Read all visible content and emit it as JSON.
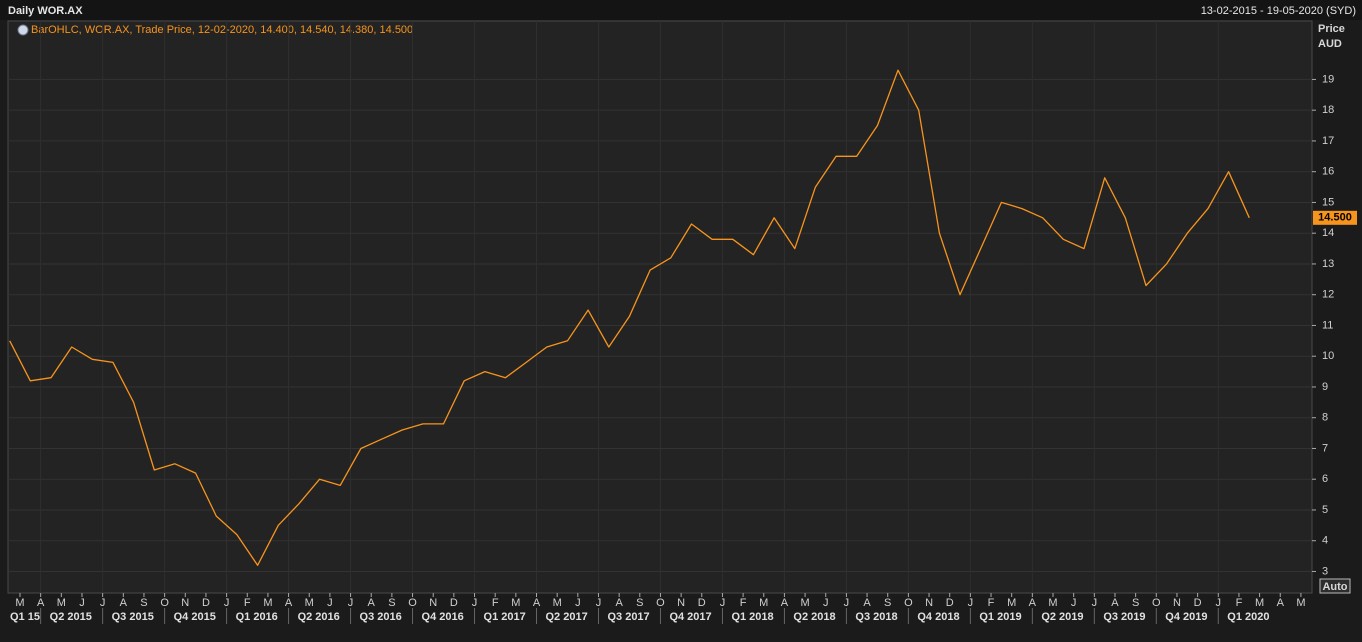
{
  "chart_data": {
    "type": "line",
    "title": "Daily WOR.AX",
    "date_range": "13-02-2015 - 19-05-2020 (SYD)",
    "legend_text": "BarOHLC, WOR.AX, Trade Price, 12-02-2020, 14.400, 14.540, 14.380, 14.500",
    "y_axis_label": "Price",
    "y_axis_unit": "AUD",
    "scale_mode": "Auto",
    "last_price": {
      "value": 14.5,
      "label": "14.500"
    },
    "grid": true,
    "x": [
      "2015-02",
      "2015-03",
      "2015-04",
      "2015-05",
      "2015-06",
      "2015-07",
      "2015-08",
      "2015-09",
      "2015-10",
      "2015-11",
      "2015-12",
      "2016-01",
      "2016-02",
      "2016-03",
      "2016-04",
      "2016-05",
      "2016-06",
      "2016-07",
      "2016-08",
      "2016-09",
      "2016-10",
      "2016-11",
      "2016-12",
      "2017-01",
      "2017-02",
      "2017-03",
      "2017-04",
      "2017-05",
      "2017-06",
      "2017-07",
      "2017-08",
      "2017-09",
      "2017-10",
      "2017-11",
      "2017-12",
      "2018-01",
      "2018-02",
      "2018-03",
      "2018-04",
      "2018-05",
      "2018-06",
      "2018-07",
      "2018-08",
      "2018-09",
      "2018-10",
      "2018-11",
      "2018-12",
      "2019-01",
      "2019-02",
      "2019-03",
      "2019-04",
      "2019-05",
      "2019-06",
      "2019-07",
      "2019-08",
      "2019-09",
      "2019-10",
      "2019-11",
      "2019-12",
      "2020-01",
      "2020-02"
    ],
    "series": [
      {
        "name": "WOR.AX",
        "color": "#f7941d",
        "values": [
          10.5,
          9.2,
          9.3,
          10.3,
          9.9,
          9.8,
          8.5,
          6.3,
          6.5,
          6.2,
          4.8,
          4.2,
          3.2,
          4.5,
          5.2,
          6.0,
          5.8,
          7.0,
          7.3,
          7.6,
          7.8,
          7.8,
          9.2,
          9.5,
          9.3,
          9.8,
          10.3,
          10.5,
          11.5,
          10.3,
          11.3,
          12.8,
          13.2,
          14.3,
          13.8,
          13.8,
          13.3,
          14.5,
          13.5,
          15.5,
          16.5,
          16.5,
          17.5,
          19.3,
          18.0,
          14.0,
          12.0,
          13.5,
          15.0,
          14.8,
          14.5,
          13.8,
          13.5,
          15.8,
          14.5,
          12.3,
          13.0,
          14.0,
          14.8,
          16.0,
          14.5
        ]
      }
    ],
    "ylim": [
      2.3,
      20.9
    ],
    "yticks": [
      3,
      4,
      5,
      6,
      7,
      8,
      9,
      10,
      11,
      12,
      13,
      14,
      15,
      16,
      17,
      18,
      19
    ],
    "xticks": [
      {
        "value": "2015-03",
        "label": "M"
      },
      {
        "value": "2015-04",
        "label": "A"
      },
      {
        "value": "2015-05",
        "label": "M"
      },
      {
        "value": "2015-06",
        "label": "J"
      },
      {
        "value": "2015-07",
        "label": "J"
      },
      {
        "value": "2015-08",
        "label": "A"
      },
      {
        "value": "2015-09",
        "label": "S"
      },
      {
        "value": "2015-10",
        "label": "O"
      },
      {
        "value": "2015-11",
        "label": "N"
      },
      {
        "value": "2015-12",
        "label": "D"
      },
      {
        "value": "2016-01",
        "label": "J"
      },
      {
        "value": "2016-02",
        "label": "F"
      },
      {
        "value": "2016-03",
        "label": "M"
      },
      {
        "value": "2016-04",
        "label": "A"
      },
      {
        "value": "2016-05",
        "label": "M"
      },
      {
        "value": "2016-06",
        "label": "J"
      },
      {
        "value": "2016-07",
        "label": "J"
      },
      {
        "value": "2016-08",
        "label": "A"
      },
      {
        "value": "2016-09",
        "label": "S"
      },
      {
        "value": "2016-10",
        "label": "O"
      },
      {
        "value": "2016-11",
        "label": "N"
      },
      {
        "value": "2016-12",
        "label": "D"
      },
      {
        "value": "2017-01",
        "label": "J"
      },
      {
        "value": "2017-02",
        "label": "F"
      },
      {
        "value": "2017-03",
        "label": "M"
      },
      {
        "value": "2017-04",
        "label": "A"
      },
      {
        "value": "2017-05",
        "label": "M"
      },
      {
        "value": "2017-06",
        "label": "J"
      },
      {
        "value": "2017-07",
        "label": "J"
      },
      {
        "value": "2017-08",
        "label": "A"
      },
      {
        "value": "2017-09",
        "label": "S"
      },
      {
        "value": "2017-10",
        "label": "O"
      },
      {
        "value": "2017-11",
        "label": "N"
      },
      {
        "value": "2017-12",
        "label": "D"
      },
      {
        "value": "2018-01",
        "label": "J"
      },
      {
        "value": "2018-02",
        "label": "F"
      },
      {
        "value": "2018-03",
        "label": "M"
      },
      {
        "value": "2018-04",
        "label": "A"
      },
      {
        "value": "2018-05",
        "label": "M"
      },
      {
        "value": "2018-06",
        "label": "J"
      },
      {
        "value": "2018-07",
        "label": "J"
      },
      {
        "value": "2018-08",
        "label": "A"
      },
      {
        "value": "2018-09",
        "label": "S"
      },
      {
        "value": "2018-10",
        "label": "O"
      },
      {
        "value": "2018-11",
        "label": "N"
      },
      {
        "value": "2018-12",
        "label": "D"
      },
      {
        "value": "2019-01",
        "label": "J"
      },
      {
        "value": "2019-02",
        "label": "F"
      },
      {
        "value": "2019-03",
        "label": "M"
      },
      {
        "value": "2019-04",
        "label": "A"
      },
      {
        "value": "2019-05",
        "label": "M"
      },
      {
        "value": "2019-06",
        "label": "J"
      },
      {
        "value": "2019-07",
        "label": "J"
      },
      {
        "value": "2019-08",
        "label": "A"
      },
      {
        "value": "2019-09",
        "label": "S"
      },
      {
        "value": "2019-10",
        "label": "O"
      },
      {
        "value": "2019-11",
        "label": "N"
      },
      {
        "value": "2019-12",
        "label": "D"
      },
      {
        "value": "2020-01",
        "label": "J"
      },
      {
        "value": "2020-02",
        "label": "F"
      },
      {
        "value": "2020-03",
        "label": "M"
      },
      {
        "value": "2020-04",
        "label": "A"
      },
      {
        "value": "2020-05",
        "label": "M"
      }
    ],
    "quarter_labels": [
      {
        "value": "2015-01",
        "label": "Q1 15"
      },
      {
        "value": "2015-04",
        "label": "Q2 2015"
      },
      {
        "value": "2015-07",
        "label": "Q3 2015"
      },
      {
        "value": "2015-10",
        "label": "Q4 2015"
      },
      {
        "value": "2016-01",
        "label": "Q1 2016"
      },
      {
        "value": "2016-04",
        "label": "Q2 2016"
      },
      {
        "value": "2016-07",
        "label": "Q3 2016"
      },
      {
        "value": "2016-10",
        "label": "Q4 2016"
      },
      {
        "value": "2017-01",
        "label": "Q1 2017"
      },
      {
        "value": "2017-04",
        "label": "Q2 2017"
      },
      {
        "value": "2017-07",
        "label": "Q3 2017"
      },
      {
        "value": "2017-10",
        "label": "Q4 2017"
      },
      {
        "value": "2018-01",
        "label": "Q1 2018"
      },
      {
        "value": "2018-04",
        "label": "Q2 2018"
      },
      {
        "value": "2018-07",
        "label": "Q3 2018"
      },
      {
        "value": "2018-10",
        "label": "Q4 2018"
      },
      {
        "value": "2019-01",
        "label": "Q1 2019"
      },
      {
        "value": "2019-04",
        "label": "Q2 2019"
      },
      {
        "value": "2019-07",
        "label": "Q3 2019"
      },
      {
        "value": "2019-10",
        "label": "Q4 2019"
      },
      {
        "value": "2020-01",
        "label": "Q1 2020"
      }
    ]
  }
}
